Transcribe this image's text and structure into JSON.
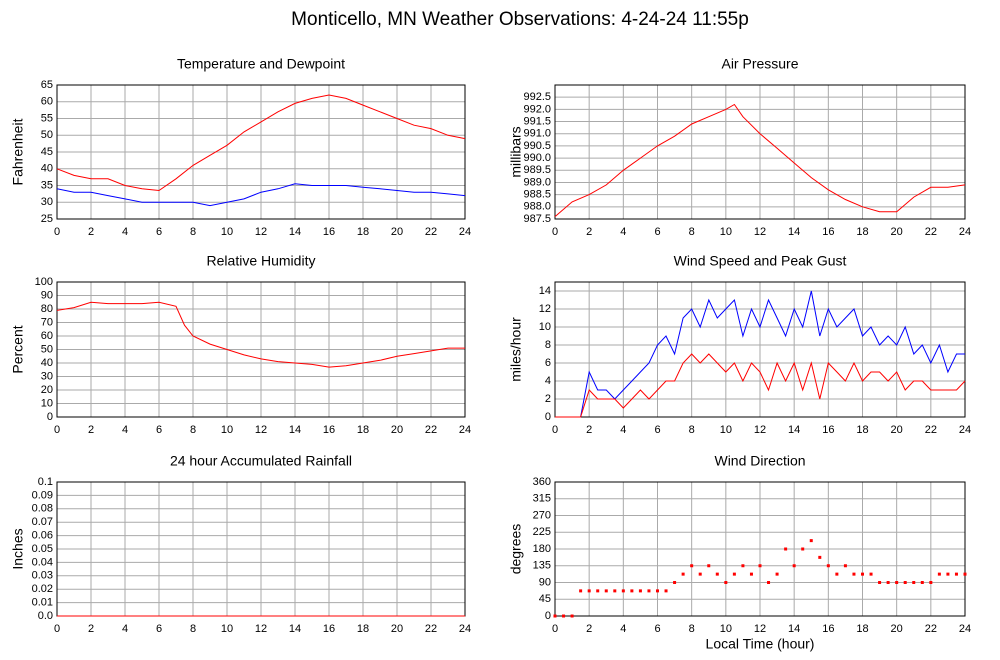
{
  "title": "Monticello, MN Weather Observations: 4-24-24 11:55p",
  "xlabel": "Local Time (hour)",
  "chart_data": [
    {
      "type": "line",
      "title": "Temperature and Dewpoint",
      "ylabel": "Fahrenheit",
      "x": [
        0,
        1,
        2,
        3,
        4,
        5,
        6,
        7,
        8,
        9,
        10,
        11,
        12,
        13,
        14,
        15,
        16,
        17,
        18,
        19,
        20,
        21,
        22,
        23,
        24
      ],
      "series": [
        {
          "color": "#ff0000",
          "values": [
            40,
            38,
            37,
            37,
            35,
            34,
            33.5,
            37,
            41,
            44,
            47,
            51,
            54,
            57,
            59.5,
            61,
            62,
            61,
            59,
            57,
            55,
            53,
            52,
            50,
            49
          ]
        },
        {
          "color": "#0000ff",
          "values": [
            34,
            33,
            33,
            32,
            31,
            30,
            30,
            30,
            30,
            29,
            30,
            31,
            33,
            34,
            35.5,
            35,
            35,
            35,
            34.5,
            34,
            33.5,
            33,
            33,
            32.5,
            32
          ]
        }
      ],
      "xlim": [
        0,
        24
      ],
      "xticks": [
        0,
        2,
        4,
        6,
        8,
        10,
        12,
        14,
        16,
        18,
        20,
        22,
        24
      ],
      "ylim": [
        25,
        65
      ],
      "yticks": [
        25,
        30,
        35,
        40,
        45,
        50,
        55,
        60,
        65
      ],
      "grid": true
    },
    {
      "type": "line",
      "title": "Air Pressure",
      "ylabel": "millibars",
      "x": [
        0,
        1,
        2,
        3,
        4,
        5,
        6,
        7,
        8,
        9,
        10,
        10.5,
        11,
        12,
        13,
        14,
        15,
        16,
        17,
        18,
        19,
        20,
        21,
        22,
        23,
        24
      ],
      "series": [
        {
          "color": "#ff0000",
          "values": [
            987.6,
            988.2,
            988.5,
            988.9,
            989.5,
            990.0,
            990.5,
            990.9,
            991.4,
            991.7,
            992.0,
            992.2,
            991.7,
            991.0,
            990.4,
            989.8,
            989.2,
            988.7,
            988.3,
            988.0,
            987.8,
            987.8,
            988.4,
            988.8,
            988.8,
            988.9
          ]
        }
      ],
      "xlim": [
        0,
        24
      ],
      "xticks": [
        0,
        2,
        4,
        6,
        8,
        10,
        12,
        14,
        16,
        18,
        20,
        22,
        24
      ],
      "ylim": [
        987.5,
        993
      ],
      "yticks": [
        987.5,
        {
          "value": 988,
          "label": "988.0"
        },
        988.5,
        {
          "value": 989,
          "label": "989.0"
        },
        989.5,
        {
          "value": 990,
          "label": "990.0"
        },
        990.5,
        {
          "value": 991,
          "label": "991.0"
        },
        991.5,
        {
          "value": 992,
          "label": "992.0"
        },
        992.5
      ],
      "grid": true
    },
    {
      "type": "line",
      "title": "Relative Humidity",
      "ylabel": "Percent",
      "x": [
        0,
        1,
        2,
        3,
        4,
        5,
        6,
        7,
        7.5,
        8,
        9,
        10,
        11,
        12,
        13,
        14,
        15,
        16,
        17,
        18,
        19,
        20,
        21,
        22,
        23,
        24
      ],
      "series": [
        {
          "color": "#ff0000",
          "values": [
            79,
            81,
            85,
            84,
            84,
            84,
            85,
            82,
            68,
            60,
            54,
            50,
            46,
            43,
            41,
            40,
            39,
            37,
            38,
            40,
            42,
            45,
            47,
            49,
            51,
            51
          ]
        }
      ],
      "xlim": [
        0,
        24
      ],
      "xticks": [
        0,
        2,
        4,
        6,
        8,
        10,
        12,
        14,
        16,
        18,
        20,
        22,
        24
      ],
      "ylim": [
        0,
        100
      ],
      "yticks": [
        0,
        10,
        20,
        30,
        40,
        50,
        60,
        70,
        80,
        90,
        100
      ],
      "grid": true
    },
    {
      "type": "line",
      "title": "Wind Speed and Peak Gust",
      "ylabel": "miles/hour",
      "x": [
        0,
        0.5,
        1,
        1.5,
        2,
        2.5,
        3,
        3.5,
        4,
        4.5,
        5,
        5.5,
        6,
        6.5,
        7,
        7.5,
        8,
        8.5,
        9,
        9.5,
        10,
        10.5,
        11,
        11.5,
        12,
        12.5,
        13,
        13.5,
        14,
        14.5,
        15,
        15.5,
        16,
        16.5,
        17,
        17.5,
        18,
        18.5,
        19,
        19.5,
        20,
        20.5,
        21,
        21.5,
        22,
        22.5,
        23,
        23.5,
        24
      ],
      "series": [
        {
          "color": "#0000ff",
          "values": [
            0,
            0,
            0,
            0,
            5,
            3,
            3,
            2,
            3,
            4,
            5,
            6,
            8,
            9,
            7,
            11,
            12,
            10,
            13,
            11,
            12,
            13,
            9,
            12,
            10,
            13,
            11,
            9,
            12,
            10,
            14,
            9,
            12,
            10,
            11,
            12,
            9,
            10,
            8,
            9,
            8,
            10,
            7,
            8,
            6,
            8,
            5,
            7,
            7
          ]
        },
        {
          "color": "#ff0000",
          "values": [
            0,
            0,
            0,
            0,
            3,
            2,
            2,
            2,
            1,
            2,
            3,
            2,
            3,
            4,
            4,
            6,
            7,
            6,
            7,
            6,
            5,
            6,
            4,
            6,
            5,
            3,
            6,
            4,
            6,
            3,
            6,
            2,
            6,
            5,
            4,
            6,
            4,
            5,
            5,
            4,
            5,
            3,
            4,
            4,
            3,
            3,
            3,
            3,
            4
          ]
        }
      ],
      "xlim": [
        0,
        24
      ],
      "xticks": [
        0,
        2,
        4,
        6,
        8,
        10,
        12,
        14,
        16,
        18,
        20,
        22,
        24
      ],
      "ylim": [
        0,
        15
      ],
      "yticks": [
        0,
        2,
        4,
        6,
        8,
        10,
        12,
        14
      ],
      "grid": true
    },
    {
      "type": "line",
      "title": "24 hour Accumulated Rainfall",
      "ylabel": "Inches",
      "x": [
        0,
        1,
        2,
        3,
        4,
        5,
        6,
        7,
        8,
        9,
        10,
        11,
        12,
        13,
        14,
        15,
        16,
        17,
        18,
        19,
        20,
        21,
        22,
        23,
        24
      ],
      "series": [
        {
          "color": "#ff0000",
          "values": [
            0,
            0,
            0,
            0,
            0,
            0,
            0,
            0,
            0,
            0,
            0,
            0,
            0,
            0,
            0,
            0,
            0,
            0,
            0,
            0,
            0,
            0,
            0,
            0,
            0
          ]
        }
      ],
      "xlim": [
        0,
        24
      ],
      "xticks": [
        0,
        2,
        4,
        6,
        8,
        10,
        12,
        14,
        16,
        18,
        20,
        22,
        24
      ],
      "ylim": [
        0,
        0.1
      ],
      "yticks": [
        {
          "value": 0,
          "label": "0.0"
        },
        0.01,
        0.02,
        0.03,
        0.04,
        0.05,
        0.06,
        0.07,
        0.08,
        0.09,
        0.1
      ],
      "grid": true
    },
    {
      "type": "scatter",
      "title": "Wind Direction",
      "ylabel": "degrees",
      "x": [
        0,
        0.5,
        1,
        1.5,
        2,
        2.5,
        3,
        3.5,
        4,
        4.5,
        5,
        5.5,
        6,
        6.5,
        7,
        7.5,
        8,
        8.5,
        9,
        9.5,
        10,
        10.5,
        11,
        11.5,
        12,
        12.5,
        13,
        13.5,
        14,
        14.5,
        15,
        15.5,
        16,
        16.5,
        17,
        17.5,
        18,
        18.5,
        19,
        19.5,
        20,
        20.5,
        21,
        21.5,
        22,
        22.5,
        23,
        23.5,
        24
      ],
      "series": [
        {
          "color": "#ff0000",
          "values": [
            0,
            0,
            0,
            67.5,
            67.5,
            67.5,
            67.5,
            67.5,
            67.5,
            67.5,
            67.5,
            67.5,
            67.5,
            67.5,
            90,
            112.5,
            135,
            112.5,
            135,
            112.5,
            90,
            112.5,
            135,
            112.5,
            135,
            90,
            112.5,
            180,
            135,
            180,
            202.5,
            157.5,
            135,
            112.5,
            135,
            112.5,
            112.5,
            112.5,
            90,
            90,
            90,
            90,
            90,
            90,
            90,
            112.5,
            112.5,
            112.5,
            112.5
          ]
        }
      ],
      "xlim": [
        0,
        24
      ],
      "xticks": [
        0,
        2,
        4,
        6,
        8,
        10,
        12,
        14,
        16,
        18,
        20,
        22,
        24
      ],
      "ylim": [
        0,
        360
      ],
      "yticks": [
        0,
        45,
        90,
        135,
        180,
        225,
        270,
        315,
        360
      ],
      "grid": true
    }
  ]
}
